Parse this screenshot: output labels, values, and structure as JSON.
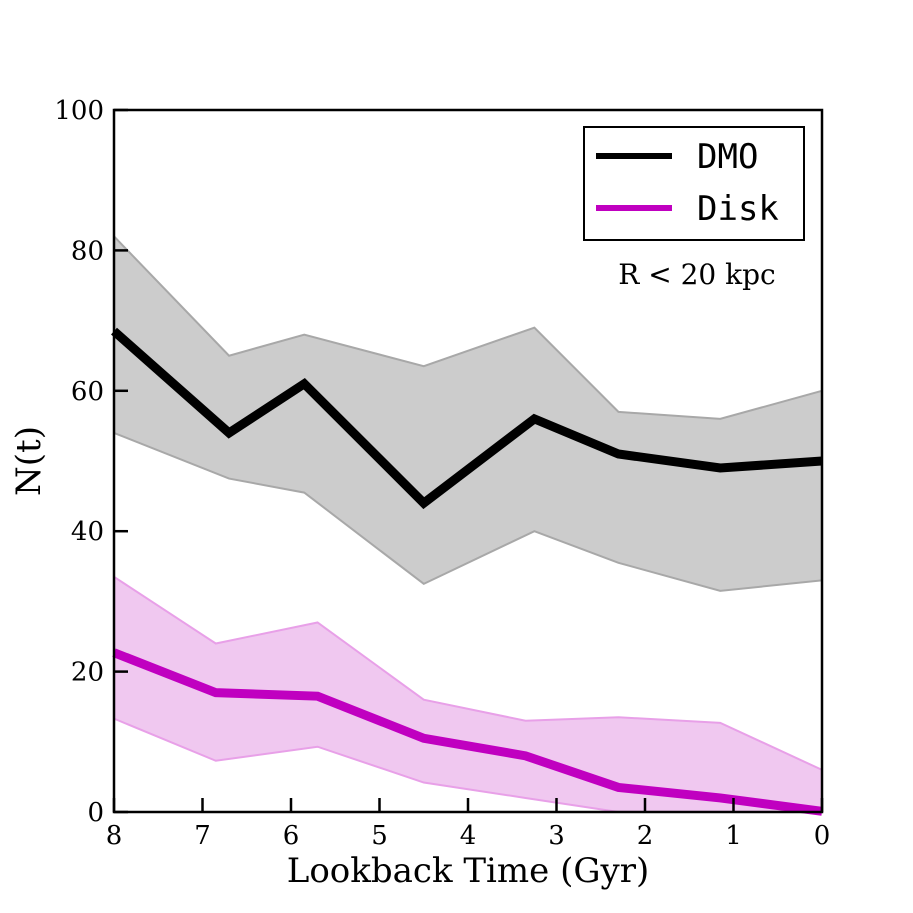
{
  "chart_data": {
    "type": "line",
    "title": "",
    "xlabel": "Lookback Time (Gyr)",
    "ylabel": "N(t)",
    "xlim": [
      8,
      0
    ],
    "ylim": [
      0,
      100
    ],
    "x_reversed": true,
    "xticks": [
      "8",
      "7",
      "6",
      "5",
      "4",
      "3",
      "2",
      "1",
      "0"
    ],
    "yticks": [
      "0",
      "20",
      "40",
      "60",
      "80",
      "100"
    ],
    "annotation": "R < 20 kpc",
    "legend_position": "top-right",
    "grid": false,
    "series": [
      {
        "name": "DMO",
        "color": "#000000",
        "band_color": "#cccccc",
        "band_edge_color": "#a8a8a8",
        "x": [
          8.0,
          6.7,
          5.85,
          4.5,
          3.25,
          2.3,
          1.15,
          0.0
        ],
        "y": [
          68.5,
          54,
          61,
          44,
          56,
          51,
          49,
          50
        ],
        "y_upper": [
          82,
          65,
          68,
          63.5,
          69,
          57,
          56,
          60
        ],
        "y_lower": [
          54,
          47.5,
          45.5,
          32.5,
          40,
          35.5,
          31.5,
          33
        ]
      },
      {
        "name": "Disk",
        "color": "#c000c0",
        "band_color": "#f0c8f0",
        "band_edge_color": "#e8a0e8",
        "x": [
          8.0,
          6.85,
          5.7,
          4.5,
          3.35,
          2.3,
          1.15,
          0.0
        ],
        "y": [
          22.7,
          17,
          16.5,
          10.5,
          8,
          3.5,
          2,
          0.1
        ],
        "y_upper": [
          33.5,
          24,
          27,
          16,
          13,
          13.5,
          12.7,
          6
        ],
        "y_lower": [
          13.3,
          7.3,
          9.3,
          4.2,
          2,
          0,
          0,
          0
        ]
      }
    ]
  }
}
